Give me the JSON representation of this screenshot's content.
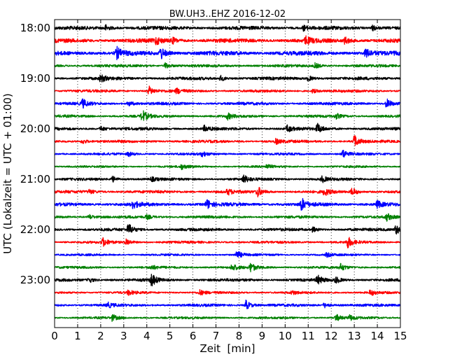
{
  "chart_data": {
    "type": "line",
    "title": "BW.UH3..EHZ 2016-12-02",
    "xlabel": "Zeit  [min]",
    "ylabel": "UTC (Lokalzeit = UTC + 01:00)",
    "xlim": [
      0,
      15
    ],
    "x_ticks": [
      "0",
      "1",
      "2",
      "3",
      "4",
      "5",
      "6",
      "7",
      "8",
      "9",
      "10",
      "11",
      "12",
      "13",
      "14",
      "15"
    ],
    "y_ticks": [
      "18:00",
      "19:00",
      "20:00",
      "21:00",
      "22:00",
      "23:00"
    ],
    "grid": {
      "x": "dotted",
      "y": "off"
    },
    "colors": [
      "#000000",
      "#ff0000",
      "#0000ff",
      "#008000"
    ],
    "traces_per_hour": 4,
    "minutes_per_trace": 15,
    "series": [
      {
        "start": "18:00",
        "color": "#000000",
        "noise": 0.38,
        "events": [
          [
            2.2,
            0.6
          ],
          [
            10.8,
            0.5
          ],
          [
            13.8,
            0.5
          ]
        ]
      },
      {
        "start": "18:15",
        "color": "#ff0000",
        "noise": 0.42,
        "events": [
          [
            4.4,
            0.7
          ],
          [
            5.1,
            0.6
          ],
          [
            10.9,
            0.8
          ],
          [
            12.6,
            0.7
          ]
        ]
      },
      {
        "start": "18:30",
        "color": "#0000ff",
        "noise": 0.45,
        "events": [
          [
            2.7,
            1.1
          ],
          [
            4.6,
            1.3
          ],
          [
            13.5,
            0.9
          ]
        ]
      },
      {
        "start": "18:45",
        "color": "#008000",
        "noise": 0.28,
        "events": [
          [
            4.8,
            0.6
          ],
          [
            11.3,
            0.5
          ]
        ]
      },
      {
        "start": "19:00",
        "color": "#000000",
        "noise": 0.32,
        "events": [
          [
            2.0,
            0.7
          ],
          [
            7.2,
            0.5
          ],
          [
            11.0,
            0.5
          ]
        ]
      },
      {
        "start": "19:15",
        "color": "#ff0000",
        "noise": 0.28,
        "events": [
          [
            4.1,
            0.9
          ],
          [
            5.3,
            0.5
          ],
          [
            11.2,
            0.4
          ]
        ]
      },
      {
        "start": "19:30",
        "color": "#0000ff",
        "noise": 0.3,
        "events": [
          [
            1.2,
            0.9
          ],
          [
            3.2,
            0.5
          ],
          [
            14.4,
            1.0
          ]
        ]
      },
      {
        "start": "19:45",
        "color": "#008000",
        "noise": 0.28,
        "events": [
          [
            3.8,
            1.2
          ],
          [
            7.5,
            0.6
          ],
          [
            12.2,
            0.5
          ]
        ]
      },
      {
        "start": "20:00",
        "color": "#000000",
        "noise": 0.3,
        "events": [
          [
            2.0,
            0.5
          ],
          [
            6.5,
            0.6
          ],
          [
            10.1,
            0.7
          ],
          [
            11.4,
            1.0
          ]
        ]
      },
      {
        "start": "20:15",
        "color": "#ff0000",
        "noise": 0.28,
        "events": [
          [
            1.2,
            0.5
          ],
          [
            9.6,
            0.5
          ],
          [
            13.0,
            1.3
          ]
        ]
      },
      {
        "start": "20:30",
        "color": "#0000ff",
        "noise": 0.25,
        "events": [
          [
            3.2,
            0.4
          ],
          [
            6.4,
            0.5
          ],
          [
            12.5,
            0.9
          ]
        ]
      },
      {
        "start": "20:45",
        "color": "#008000",
        "noise": 0.22,
        "events": [
          [
            5.5,
            0.5
          ],
          [
            9.2,
            0.4
          ]
        ]
      },
      {
        "start": "21:00",
        "color": "#000000",
        "noise": 0.28,
        "events": [
          [
            2.5,
            0.6
          ],
          [
            4.2,
            0.4
          ],
          [
            8.2,
            0.8
          ],
          [
            11.6,
            0.6
          ]
        ]
      },
      {
        "start": "21:15",
        "color": "#ff0000",
        "noise": 0.3,
        "events": [
          [
            1.5,
            0.4
          ],
          [
            7.5,
            0.6
          ],
          [
            8.8,
            1.0
          ],
          [
            11.7,
            0.7
          ],
          [
            12.9,
            0.8
          ]
        ]
      },
      {
        "start": "21:30",
        "color": "#0000ff",
        "noise": 0.35,
        "events": [
          [
            3.4,
            0.8
          ],
          [
            6.6,
            1.0
          ],
          [
            10.7,
            1.3
          ],
          [
            14.0,
            0.7
          ]
        ]
      },
      {
        "start": "21:45",
        "color": "#008000",
        "noise": 0.28,
        "events": [
          [
            1.5,
            0.5
          ],
          [
            4.0,
            0.4
          ],
          [
            14.4,
            0.7
          ]
        ]
      },
      {
        "start": "22:00",
        "color": "#000000",
        "noise": 0.3,
        "events": [
          [
            3.2,
            1.2
          ],
          [
            11.2,
            0.5
          ],
          [
            14.8,
            1.0
          ]
        ]
      },
      {
        "start": "22:15",
        "color": "#ff0000",
        "noise": 0.26,
        "events": [
          [
            2.1,
            0.8
          ],
          [
            3.1,
            0.7
          ],
          [
            12.7,
            1.2
          ]
        ]
      },
      {
        "start": "22:30",
        "color": "#0000ff",
        "noise": 0.22,
        "events": [
          [
            7.9,
            0.9
          ],
          [
            11.8,
            0.4
          ]
        ]
      },
      {
        "start": "22:45",
        "color": "#008000",
        "noise": 0.25,
        "events": [
          [
            4.2,
            0.4
          ],
          [
            7.7,
            0.7
          ],
          [
            8.5,
            0.9
          ],
          [
            12.4,
            0.7
          ]
        ]
      },
      {
        "start": "23:00",
        "color": "#000000",
        "noise": 0.3,
        "events": [
          [
            1.5,
            0.5
          ],
          [
            4.2,
            1.3
          ],
          [
            11.4,
            0.9
          ],
          [
            12.2,
            0.6
          ]
        ]
      },
      {
        "start": "23:15",
        "color": "#ff0000",
        "noise": 0.24,
        "events": [
          [
            3.2,
            0.5
          ],
          [
            6.3,
            0.5
          ],
          [
            10.3,
            0.4
          ],
          [
            13.7,
            0.6
          ]
        ]
      },
      {
        "start": "23:30",
        "color": "#0000ff",
        "noise": 0.28,
        "events": [
          [
            2.3,
            0.5
          ],
          [
            8.3,
            1.0
          ],
          [
            11.7,
            0.5
          ]
        ]
      },
      {
        "start": "23:45",
        "color": "#008000",
        "noise": 0.24,
        "events": [
          [
            2.5,
            0.6
          ],
          [
            12.2,
            0.7
          ],
          [
            12.8,
            0.5
          ]
        ]
      }
    ]
  }
}
